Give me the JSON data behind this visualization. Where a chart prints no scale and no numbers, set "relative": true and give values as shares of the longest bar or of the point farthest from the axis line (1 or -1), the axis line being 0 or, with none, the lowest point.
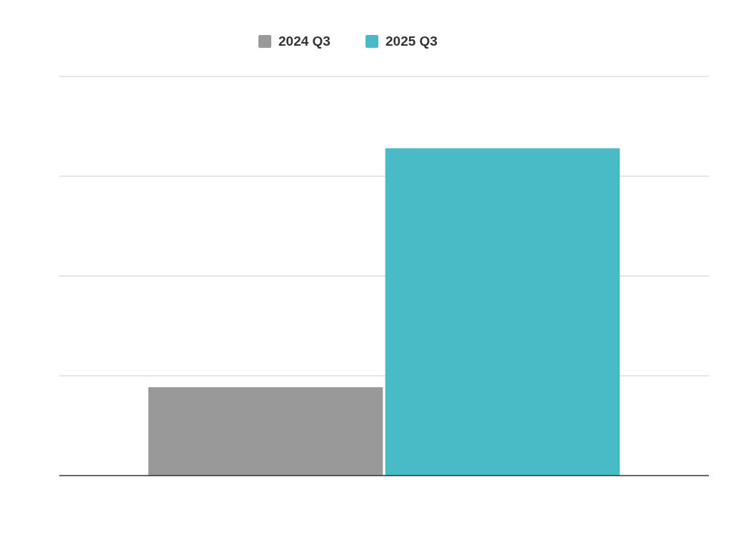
{
  "chart_data": {
    "type": "bar",
    "categories": [
      null
    ],
    "relative": true,
    "grid": true,
    "legend": "top",
    "series": [
      {
        "name": "2024 Q3",
        "color": "#999999",
        "values": [
          0.27
        ]
      },
      {
        "name": "2025 Q3",
        "color": "#48bbc6",
        "values": [
          1
        ]
      }
    ]
  }
}
